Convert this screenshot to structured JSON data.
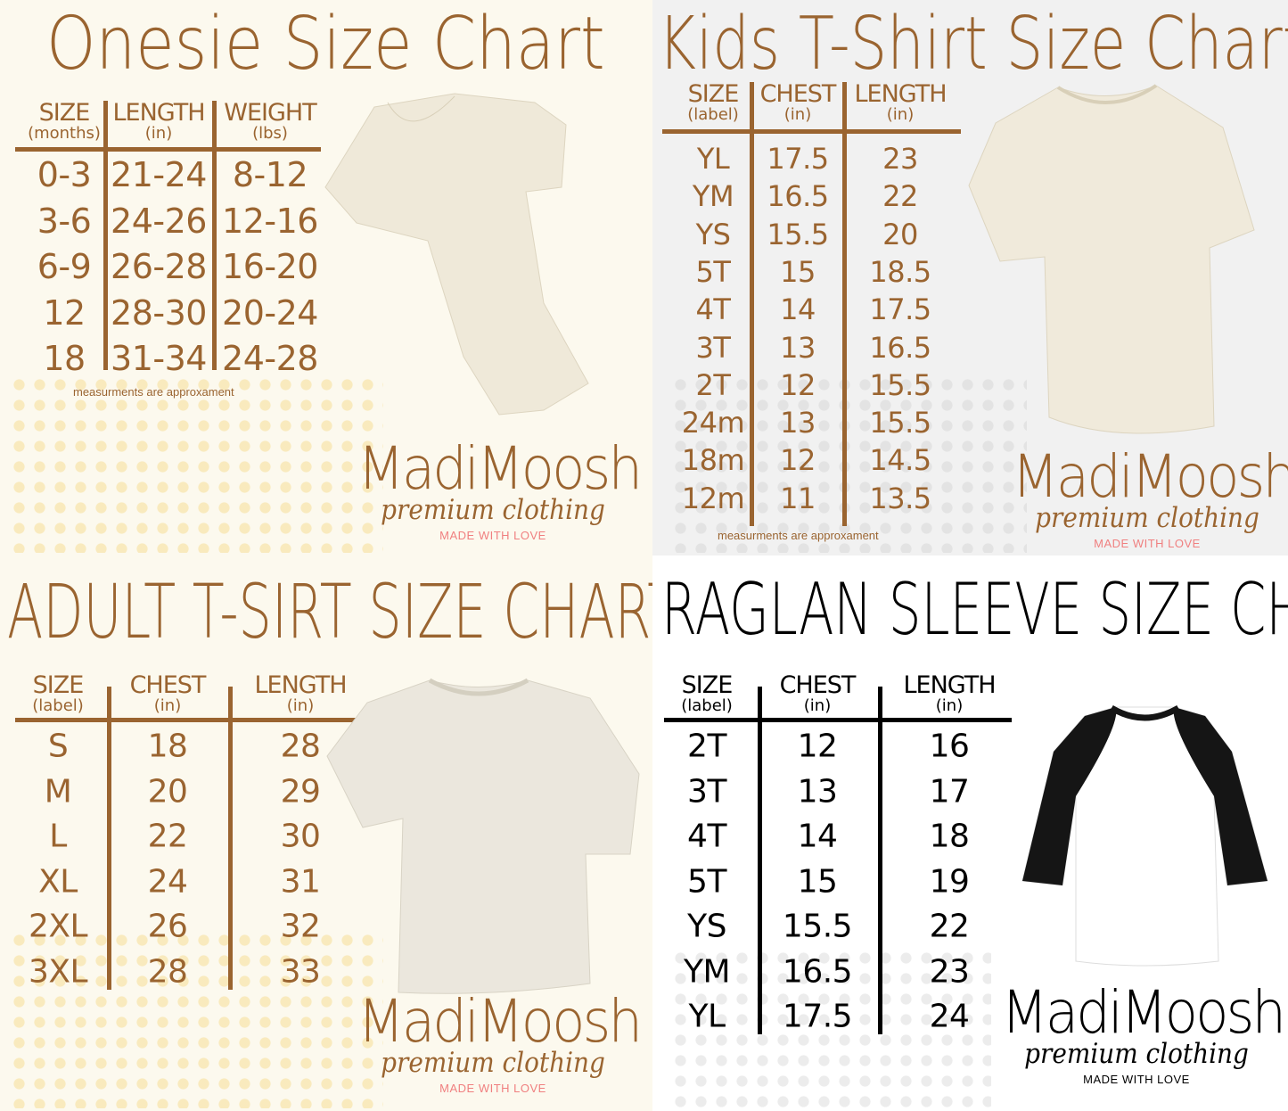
{
  "colors": {
    "brand_brown": "#9a6430",
    "cream": "#fcf9ee",
    "light_gray": "#f1f1f1",
    "love_pink": "#f08080",
    "black": "#000000"
  },
  "brand": {
    "name": "MadiMoosh",
    "tagline": "premium clothing",
    "motto": "MADE WITH LOVE"
  },
  "charts": [
    {
      "id": "onesie",
      "title": "Onesie Size Chart",
      "headers": [
        {
          "main": "SIZE",
          "sub": "(months)"
        },
        {
          "main": "LENGTH",
          "sub": "(in)"
        },
        {
          "main": "WEIGHT",
          "sub": "(lbs)"
        }
      ],
      "rows": [
        [
          "0-3",
          "21-24",
          "8-12"
        ],
        [
          "3-6",
          "24-26",
          "12-16"
        ],
        [
          "6-9",
          "26-28",
          "16-20"
        ],
        [
          "12",
          "28-30",
          "20-24"
        ],
        [
          "18",
          "31-34",
          "24-28"
        ]
      ],
      "note": "measurments are approxament",
      "garment": "onesie-image"
    },
    {
      "id": "kids",
      "title": "Kids T-Shirt Size Chart",
      "headers": [
        {
          "main": "SIZE",
          "sub": "(label)"
        },
        {
          "main": "CHEST",
          "sub": "(in)"
        },
        {
          "main": "LENGTH",
          "sub": "(in)"
        }
      ],
      "rows": [
        [
          "YL",
          "17.5",
          "23"
        ],
        [
          "YM",
          "16.5",
          "22"
        ],
        [
          "YS",
          "15.5",
          "20"
        ],
        [
          "5T",
          "15",
          "18.5"
        ],
        [
          "4T",
          "14",
          "17.5"
        ],
        [
          "3T",
          "13",
          "16.5"
        ],
        [
          "2T",
          "12",
          "15.5"
        ],
        [
          "24m",
          "13",
          "15.5"
        ],
        [
          "18m",
          "12",
          "14.5"
        ],
        [
          "12m",
          "11",
          "13.5"
        ]
      ],
      "note": "measurments are approxament",
      "garment": "kids-tshirt-image"
    },
    {
      "id": "adult",
      "title": "ADULT T-SIRT SIZE CHART",
      "headers": [
        {
          "main": "SIZE",
          "sub": "(label)"
        },
        {
          "main": "CHEST",
          "sub": "(in)"
        },
        {
          "main": "LENGTH",
          "sub": "(in)"
        }
      ],
      "rows": [
        [
          "S",
          "18",
          "28"
        ],
        [
          "M",
          "20",
          "29"
        ],
        [
          "L",
          "22",
          "30"
        ],
        [
          "XL",
          "24",
          "31"
        ],
        [
          "2XL",
          "26",
          "32"
        ],
        [
          "3XL",
          "28",
          "33"
        ]
      ],
      "garment": "adult-tshirt-image"
    },
    {
      "id": "raglan",
      "title": "RAGLAN SLEEVE SIZE CHART",
      "headers": [
        {
          "main": "SIZE",
          "sub": "(label)"
        },
        {
          "main": "CHEST",
          "sub": "(in)"
        },
        {
          "main": "LENGTH",
          "sub": "(in)"
        }
      ],
      "rows": [
        [
          "2T",
          "12",
          "16"
        ],
        [
          "3T",
          "13",
          "17"
        ],
        [
          "4T",
          "14",
          "18"
        ],
        [
          "5T",
          "15",
          "19"
        ],
        [
          "YS",
          "15.5",
          "22"
        ],
        [
          "YM",
          "16.5",
          "23"
        ],
        [
          "YL",
          "17.5",
          "24"
        ]
      ],
      "garment": "raglan-shirt-image"
    }
  ]
}
